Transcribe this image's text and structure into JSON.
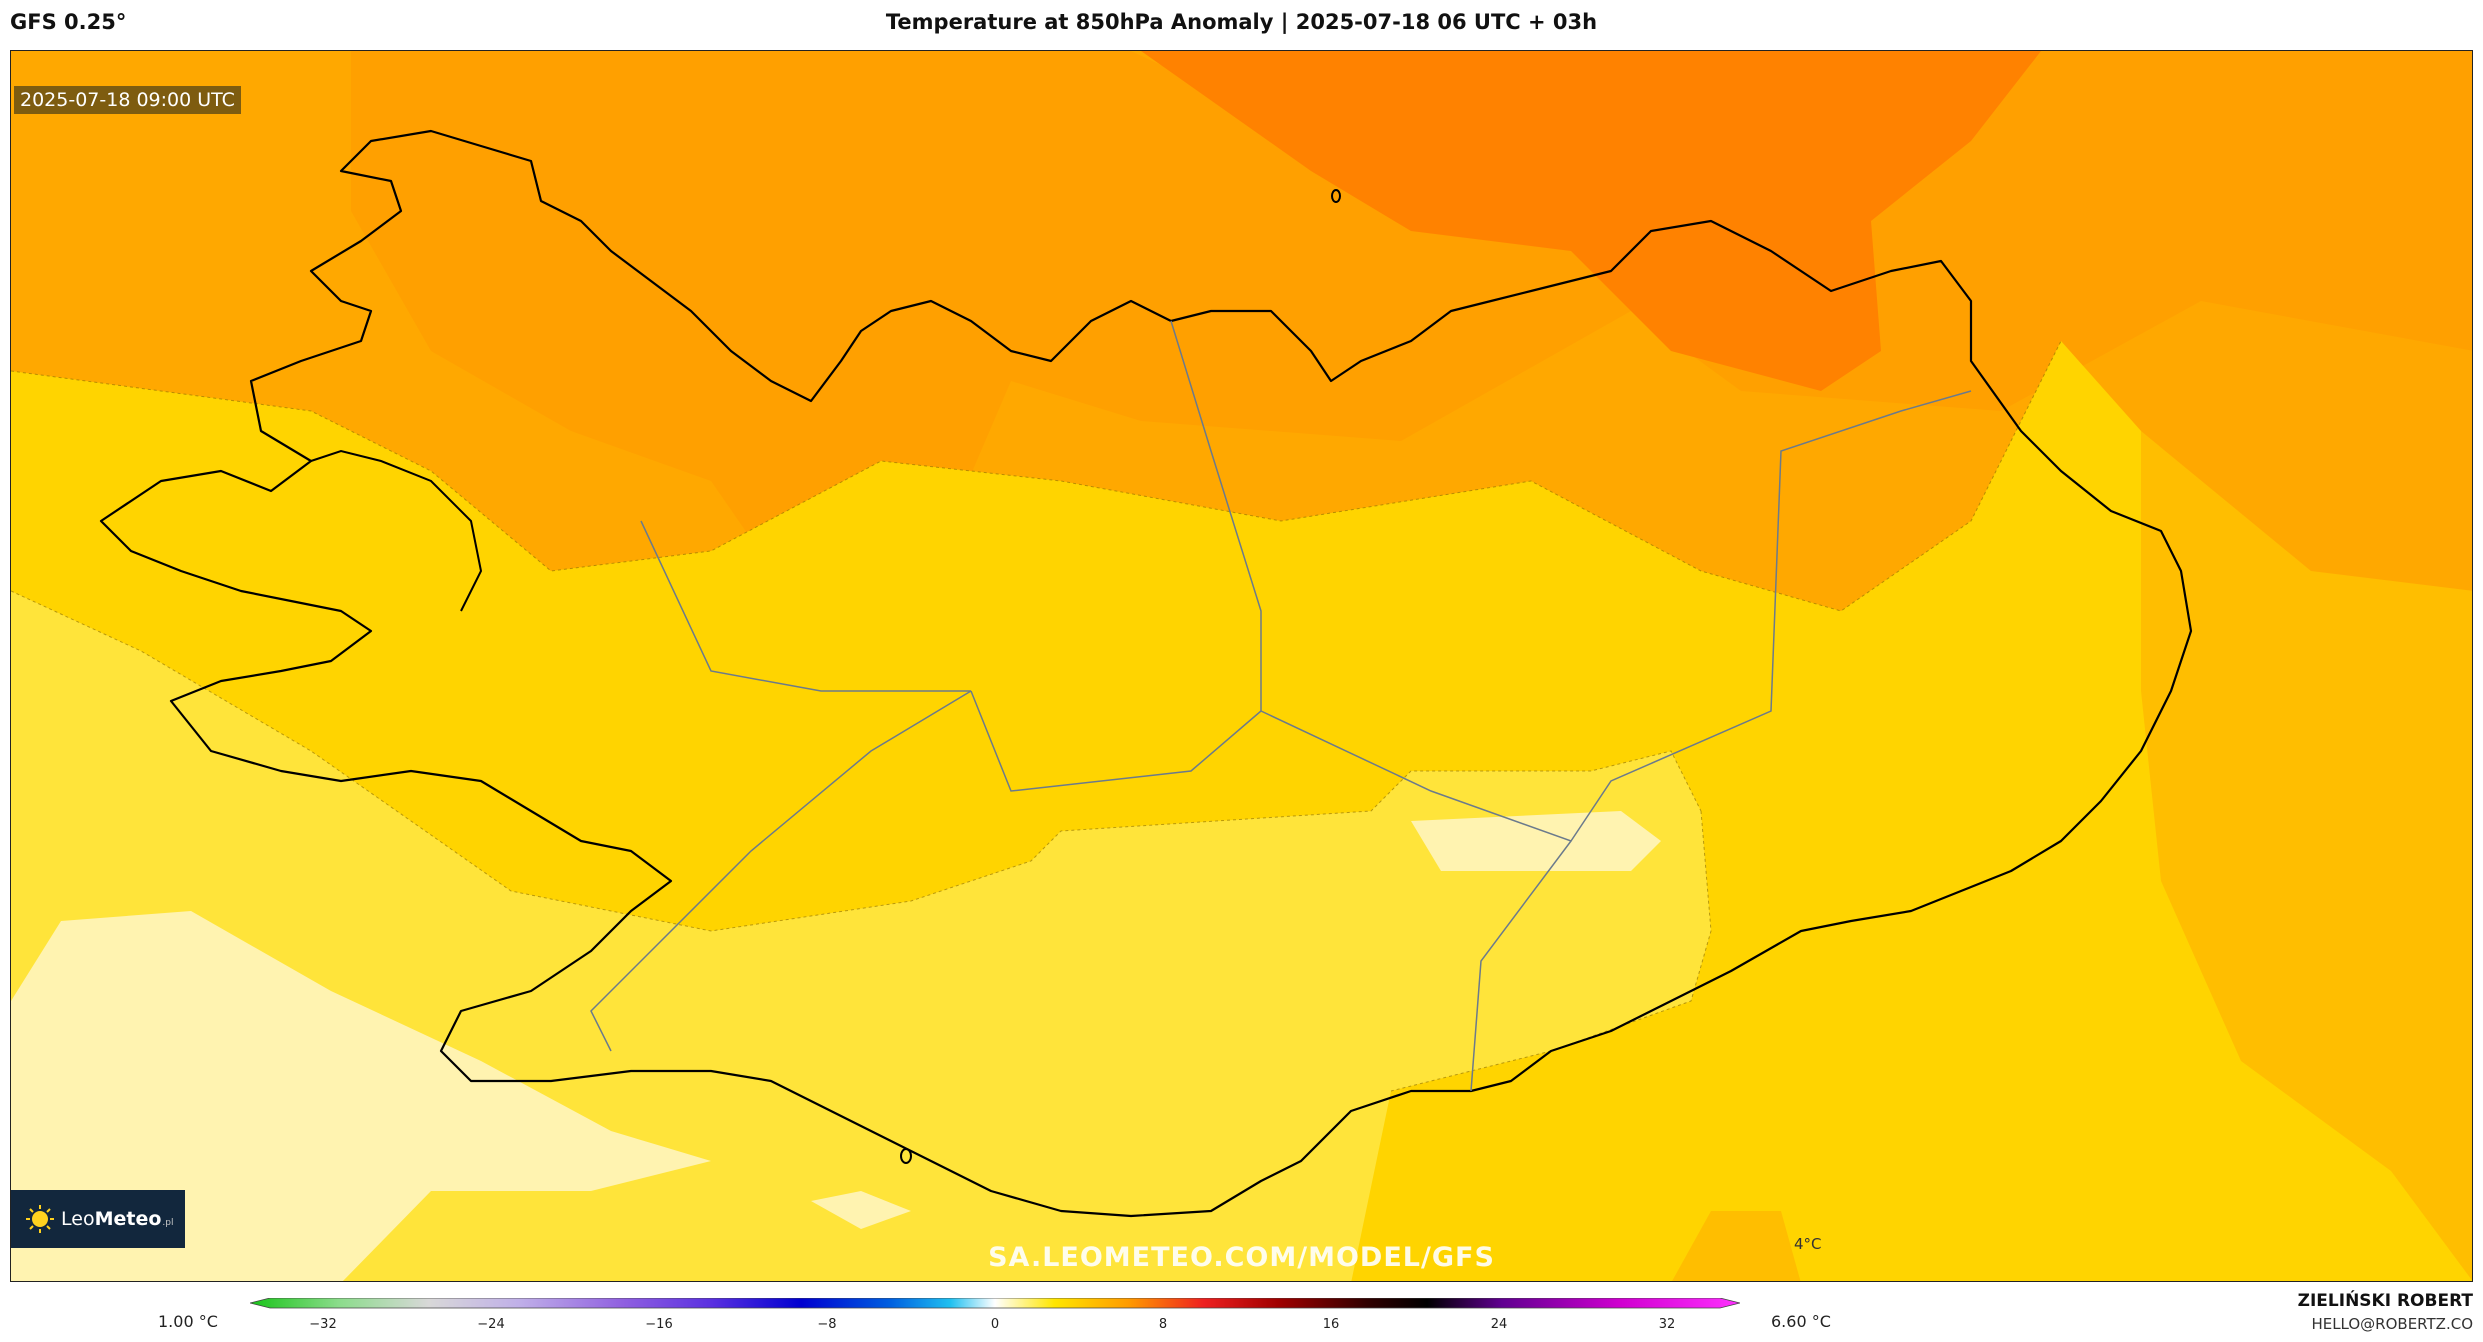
{
  "header": {
    "model": "GFS 0.25°",
    "title": "Temperature at 850hPa Anomaly | 2025-07-18 06 UTC + 03h"
  },
  "map": {
    "valid_time": "2025-07-18 09:00 UTC",
    "watermark": "SA.LEOMETEO.COM/MODEL/GFS",
    "isoline_label": "4°C",
    "region": "Iceland"
  },
  "logo": {
    "brand_light": "Leo",
    "brand_bold": "Meteo",
    "tld": ".pl"
  },
  "legend": {
    "min_label": "1.00 °C",
    "max_label": "6.60 °C",
    "ticks": [
      "−32",
      "−24",
      "−16",
      "−8",
      "0",
      "8",
      "16",
      "24",
      "32"
    ]
  },
  "footer": {
    "author": "ZIELIŃSKI ROBERT",
    "email": "HELLO@ROBERTZ.CO"
  },
  "colors": {
    "anomaly_pale": "#fff3b0",
    "anomaly_light": "#ffe83c",
    "anomaly_yellow": "#ffd700",
    "anomaly_amber": "#ffbe00",
    "anomaly_orange": "#ffa800",
    "anomaly_deep": "#ff7f00",
    "coast": "#000000",
    "logo_bg": "#12273d"
  }
}
